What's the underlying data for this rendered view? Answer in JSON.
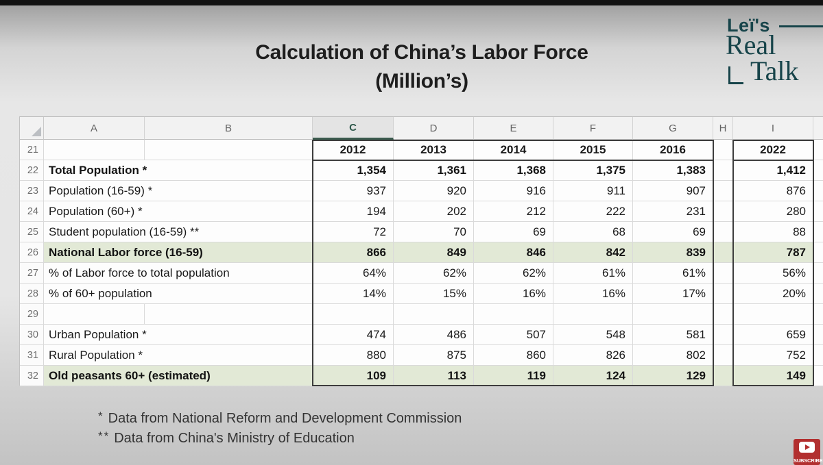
{
  "title": {
    "line1": "Calculation of China’s Labor Force",
    "line2": "(Million’s)"
  },
  "logo": {
    "line1": "Leï's",
    "line2": "Real",
    "line3": "Talk"
  },
  "subscribe": {
    "label": "SUBSCRIBE"
  },
  "spreadsheet": {
    "column_letters": [
      "A",
      "B",
      "C",
      "D",
      "E",
      "F",
      "G",
      "H",
      "I"
    ],
    "selected_column": "C",
    "year_row_number": "21",
    "years": [
      "2012",
      "2013",
      "2014",
      "2015",
      "2016",
      "2022"
    ],
    "rows": [
      {
        "num": "22",
        "label": "Total Population *",
        "bold": true,
        "highlight": false,
        "values": [
          "1,354",
          "1,361",
          "1,368",
          "1,375",
          "1,383",
          "1,412"
        ]
      },
      {
        "num": "23",
        "label": "Population (16-59) *",
        "bold": false,
        "highlight": false,
        "values": [
          "937",
          "920",
          "916",
          "911",
          "907",
          "876"
        ]
      },
      {
        "num": "24",
        "label": "Population (60+) *",
        "bold": false,
        "highlight": false,
        "values": [
          "194",
          "202",
          "212",
          "222",
          "231",
          "280"
        ]
      },
      {
        "num": "25",
        "label": "Student population (16-59) **",
        "bold": false,
        "highlight": false,
        "values": [
          "72",
          "70",
          "69",
          "68",
          "69",
          "88"
        ]
      },
      {
        "num": "26",
        "label": "National Labor force (16-59)",
        "bold": true,
        "highlight": true,
        "values": [
          "866",
          "849",
          "846",
          "842",
          "839",
          "787"
        ]
      },
      {
        "num": "27",
        "label": "% of Labor force to total population",
        "bold": false,
        "highlight": false,
        "values": [
          "64%",
          "62%",
          "62%",
          "61%",
          "61%",
          "56%"
        ]
      },
      {
        "num": "28",
        "label": "% of 60+ population",
        "bold": false,
        "highlight": false,
        "values": [
          "14%",
          "15%",
          "16%",
          "16%",
          "17%",
          "20%"
        ]
      },
      {
        "num": "29",
        "label": "",
        "bold": false,
        "highlight": false,
        "values": [
          "",
          "",
          "",
          "",
          "",
          ""
        ]
      },
      {
        "num": "30",
        "label": "Urban Population *",
        "bold": false,
        "highlight": false,
        "values": [
          "474",
          "486",
          "507",
          "548",
          "581",
          "659"
        ]
      },
      {
        "num": "31",
        "label": "Rural Population *",
        "bold": false,
        "highlight": false,
        "values": [
          "880",
          "875",
          "860",
          "826",
          "802",
          "752"
        ]
      },
      {
        "num": "32",
        "label": "Old peasants 60+ (estimated)",
        "bold": true,
        "highlight": true,
        "values": [
          "109",
          "113",
          "119",
          "124",
          "129",
          "149"
        ]
      }
    ]
  },
  "footnotes": [
    {
      "marker": "*",
      "text": "Data from National Reform and Development Commission"
    },
    {
      "marker": "**",
      "text": "Data from China's Ministry of Education"
    }
  ],
  "colors": {
    "highlight_green": "#e2e9d6",
    "selection_green": "#3b5a4e",
    "logo_teal": "#17444a",
    "subscribe_red": "#b22f2f",
    "table_border": "#3d3d3d"
  }
}
